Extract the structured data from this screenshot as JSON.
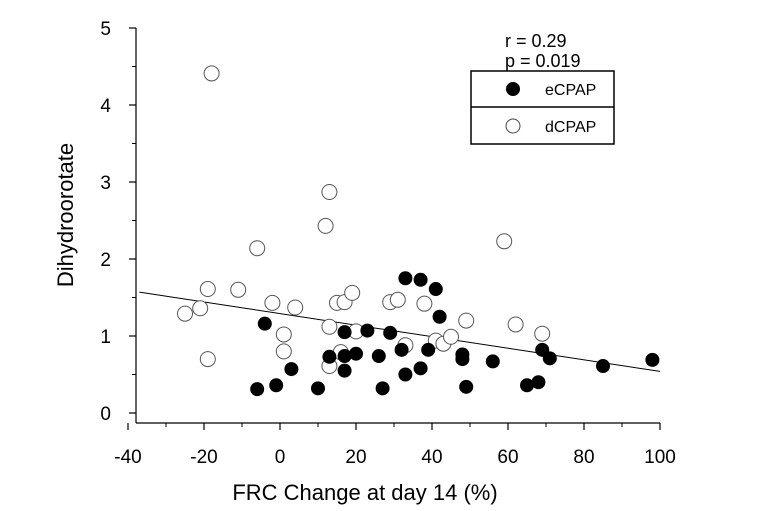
{
  "chart_data": {
    "type": "scatter",
    "xlabel": "FRC Change at day 14 (%)",
    "ylabel": "Dihydroorotate",
    "xlim": [
      -40,
      100
    ],
    "ylim": [
      0,
      5
    ],
    "x_ticks": [
      "-40",
      "-20",
      "0",
      "20",
      "40",
      "60",
      "80",
      "100"
    ],
    "y_ticks": [
      "0",
      "1",
      "2",
      "3",
      "4",
      "5"
    ],
    "x_tick_values": [
      -40,
      -20,
      0,
      20,
      40,
      60,
      80,
      100
    ],
    "y_tick_values": [
      0,
      1,
      2,
      3,
      4,
      5
    ],
    "grid": false,
    "legend_position": "top-right",
    "annotations": {
      "r": "r = 0.29",
      "p": "p = 0.019"
    },
    "series": [
      {
        "name": "eCPAP",
        "marker": "filled-circle",
        "color": "#000000",
        "points": [
          [
            -6,
            0.31
          ],
          [
            -1,
            0.36
          ],
          [
            3,
            0.57
          ],
          [
            -4,
            1.16
          ],
          [
            10,
            0.32
          ],
          [
            13,
            0.73
          ],
          [
            17,
            0.55
          ],
          [
            17,
            0.74
          ],
          [
            17,
            1.05
          ],
          [
            20,
            0.77
          ],
          [
            23,
            1.07
          ],
          [
            26,
            0.74
          ],
          [
            27,
            0.32
          ],
          [
            29,
            1.04
          ],
          [
            32,
            0.82
          ],
          [
            33,
            0.5
          ],
          [
            33,
            1.75
          ],
          [
            37,
            0.58
          ],
          [
            37,
            1.73
          ],
          [
            39,
            0.82
          ],
          [
            41,
            1.61
          ],
          [
            42,
            1.25
          ],
          [
            48,
            0.7
          ],
          [
            48,
            0.76
          ],
          [
            49,
            0.34
          ],
          [
            56,
            0.67
          ],
          [
            65,
            0.36
          ],
          [
            68,
            0.4
          ],
          [
            69,
            0.82
          ],
          [
            71,
            0.71
          ],
          [
            85,
            0.61
          ],
          [
            98,
            0.69
          ]
        ]
      },
      {
        "name": "dCPAP",
        "marker": "open-circle",
        "color": "#000000",
        "points": [
          [
            -25,
            1.29
          ],
          [
            -21,
            1.36
          ],
          [
            -19,
            0.7
          ],
          [
            -19,
            1.61
          ],
          [
            -18,
            4.41
          ],
          [
            -11,
            1.6
          ],
          [
            -6,
            2.14
          ],
          [
            -2,
            1.43
          ],
          [
            1,
            1.02
          ],
          [
            1,
            0.8
          ],
          [
            4,
            1.37
          ],
          [
            12,
            2.43
          ],
          [
            13,
            2.87
          ],
          [
            13,
            1.12
          ],
          [
            13,
            0.61
          ],
          [
            15,
            1.43
          ],
          [
            16,
            0.79
          ],
          [
            17,
            1.44
          ],
          [
            19,
            1.56
          ],
          [
            20,
            1.06
          ],
          [
            29,
            1.44
          ],
          [
            31,
            1.47
          ],
          [
            33,
            0.88
          ],
          [
            38,
            1.42
          ],
          [
            41,
            0.94
          ],
          [
            43,
            0.9
          ],
          [
            45,
            0.99
          ],
          [
            49,
            1.2
          ],
          [
            59,
            2.23
          ],
          [
            62,
            1.15
          ],
          [
            69,
            1.03
          ]
        ]
      }
    ],
    "regression_line": {
      "x": [
        -37,
        100
      ],
      "y": [
        1.57,
        0.54
      ]
    }
  }
}
